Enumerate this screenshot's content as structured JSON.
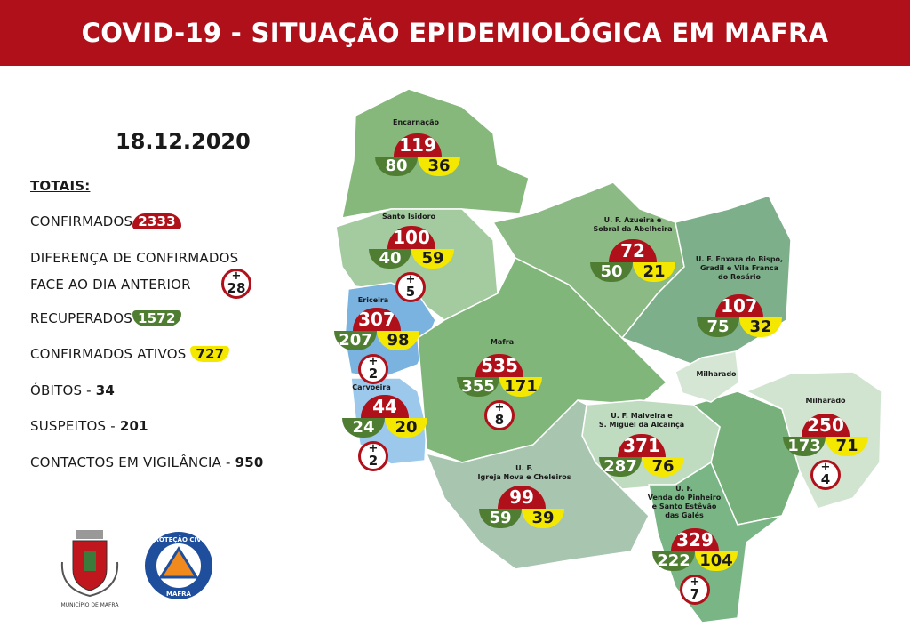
{
  "header": {
    "title": "COVID-19 - SITUAÇÃO EPIDEMIOLÓGICA EM MAFRA"
  },
  "date": "18.12.2020",
  "totals": {
    "heading": "TOTAIS:",
    "confirmed_label": "CONFIRMADOS",
    "confirmed": "2333",
    "diff_label_1": "DIFERENÇA DE CONFIRMADOS",
    "diff_label_2": "FACE AO DIA ANTERIOR",
    "diff": "28",
    "recovered_label": "RECUPERADOS",
    "recovered": "1572",
    "active_label": "CONFIRMADOS ATIVOS",
    "active": "727",
    "deaths_label": "ÓBITOS - ",
    "deaths": "34",
    "suspects_label": "SUSPEITOS - ",
    "suspects": "201",
    "contacts_label": "CONTACTOS EM VIGILÂNCIA - ",
    "contacts": "950"
  },
  "legend_colors": {
    "confirmed": "#b0101a",
    "recovered": "#4f7d32",
    "active": "#f5e800"
  },
  "regions": [
    {
      "name": "Encarnação",
      "confirmed": "119",
      "recovered": "80",
      "active": "36",
      "diff": null
    },
    {
      "name": "Santo Isidoro",
      "confirmed": "100",
      "recovered": "40",
      "active": "59",
      "diff": "5"
    },
    {
      "name": "Ericeira",
      "confirmed": "307",
      "recovered": "207",
      "active": "98",
      "diff": "2"
    },
    {
      "name": "Carvoeira",
      "confirmed": "44",
      "recovered": "24",
      "active": "20",
      "diff": "2"
    },
    {
      "name": "Mafra",
      "confirmed": "535",
      "recovered": "355",
      "active": "171",
      "diff": "8"
    },
    {
      "name": "U. F. Azueira e\nSobral da Abelheira",
      "confirmed": "72",
      "recovered": "50",
      "active": "21",
      "diff": null
    },
    {
      "name": "U. F. Enxara do Bispo,\nGradil e Vila Franca\ndo Rosário",
      "confirmed": "107",
      "recovered": "75",
      "active": "32",
      "diff": null
    },
    {
      "name": "Milharado",
      "confirmed": "250",
      "recovered": "173",
      "active": "71",
      "diff": "4"
    },
    {
      "name": "U. F. Malveira e\nS. Miguel da Alcainça",
      "confirmed": "371",
      "recovered": "287",
      "active": "76",
      "diff": null
    },
    {
      "name": "U. F.\nIgreja Nova e Cheleiros",
      "confirmed": "99",
      "recovered": "59",
      "active": "39",
      "diff": null
    },
    {
      "name": "U. F.\nVenda do Pinheiro\ne Santo Estêvão\ndas Galés",
      "confirmed": "329",
      "recovered": "222",
      "active": "104",
      "diff": "7"
    }
  ],
  "extra_labels": [
    "Milharado"
  ],
  "logos": {
    "municipio": "MUNICÍPIO DE MAFRA",
    "protecao_top": "PROTEÇÃO CIVIL",
    "protecao_bottom": "MAFRA"
  }
}
